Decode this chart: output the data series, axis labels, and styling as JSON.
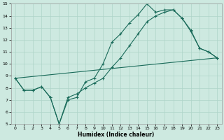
{
  "xlabel": "Humidex (Indice chaleur)",
  "xlim": [
    -0.5,
    23.5
  ],
  "ylim": [
    5,
    15
  ],
  "xticks": [
    0,
    1,
    2,
    3,
    4,
    5,
    6,
    7,
    8,
    9,
    10,
    11,
    12,
    13,
    14,
    15,
    16,
    17,
    18,
    19,
    20,
    21,
    22,
    23
  ],
  "yticks": [
    5,
    6,
    7,
    8,
    9,
    10,
    11,
    12,
    13,
    14,
    15
  ],
  "bg_color": "#cde9e0",
  "grid_color": "#aed4c8",
  "line_color": "#1a6b5a",
  "line1_x": [
    0,
    1,
    2,
    3,
    4,
    5,
    6,
    7,
    8,
    9,
    10,
    11,
    12,
    13,
    14,
    15,
    16,
    17,
    18,
    19,
    20,
    21,
    22,
    23
  ],
  "line1_y": [
    8.8,
    7.8,
    7.8,
    8.1,
    7.2,
    5.0,
    7.0,
    7.2,
    8.5,
    8.8,
    10.0,
    11.8,
    12.5,
    13.4,
    14.1,
    15.0,
    14.3,
    14.5,
    14.5,
    13.8,
    12.8,
    11.3,
    11.0,
    10.5
  ],
  "line2_x": [
    0,
    1,
    2,
    3,
    4,
    5,
    6,
    7,
    8,
    9,
    10,
    11,
    12,
    13,
    14,
    15,
    16,
    17,
    18,
    19,
    20,
    21,
    22,
    23
  ],
  "line2_y": [
    8.8,
    7.8,
    7.8,
    8.1,
    7.2,
    5.0,
    7.2,
    7.5,
    8.0,
    8.4,
    8.8,
    9.7,
    10.5,
    11.5,
    12.5,
    13.5,
    14.0,
    14.3,
    14.5,
    13.8,
    12.7,
    11.3,
    11.0,
    10.5
  ],
  "line3_x": [
    0,
    23
  ],
  "line3_y": [
    8.8,
    10.5
  ]
}
